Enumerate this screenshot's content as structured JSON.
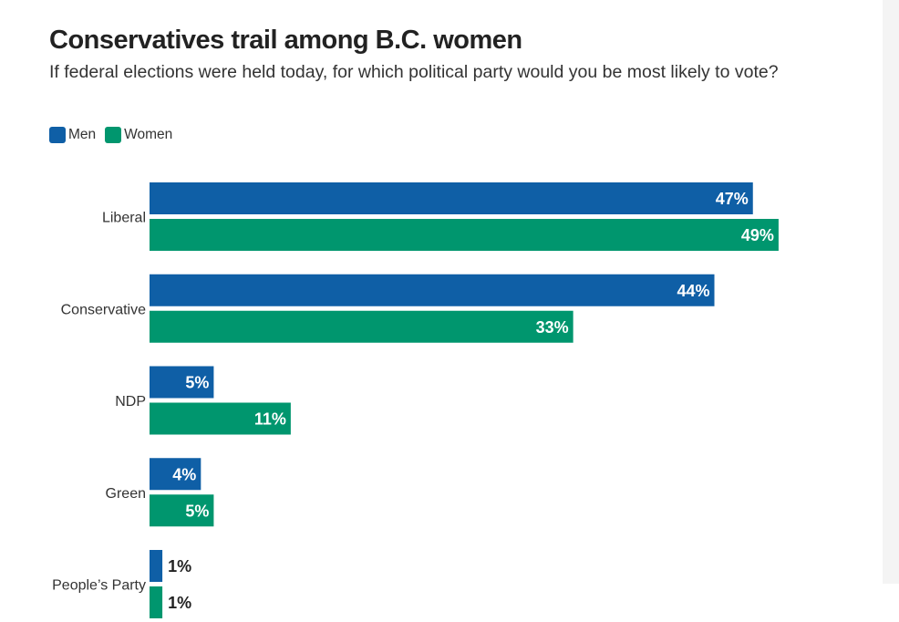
{
  "title": "Conservatives trail among B.C. women",
  "subtitle": "If federal elections were held today, for which political party would you be most likely to vote?",
  "legend": {
    "items": [
      {
        "label": "Men",
        "color": "#0F5FA6"
      },
      {
        "label": "Women",
        "color": "#00966E"
      }
    ]
  },
  "chart_data": {
    "type": "bar",
    "orientation": "horizontal",
    "title": "Conservatives trail among B.C. women",
    "subtitle": "If federal elections were held today, for which political party would you be most likely to vote?",
    "categories": [
      "Liberal",
      "Conservative",
      "NDP",
      "Green",
      "People’s Party"
    ],
    "series": [
      {
        "name": "Men",
        "color": "#0F5FA6",
        "values": [
          47,
          44,
          5,
          4,
          1
        ],
        "labels": [
          "47%",
          "44%",
          "5%",
          "4%",
          "1%"
        ]
      },
      {
        "name": "Women",
        "color": "#00966E",
        "values": [
          49,
          33,
          11,
          5,
          1
        ],
        "labels": [
          "49%",
          "33%",
          "11%",
          "5%",
          "1%"
        ]
      }
    ],
    "xlim": [
      0,
      50
    ],
    "unit": "%",
    "grid": false,
    "legend_position": "top-left"
  }
}
